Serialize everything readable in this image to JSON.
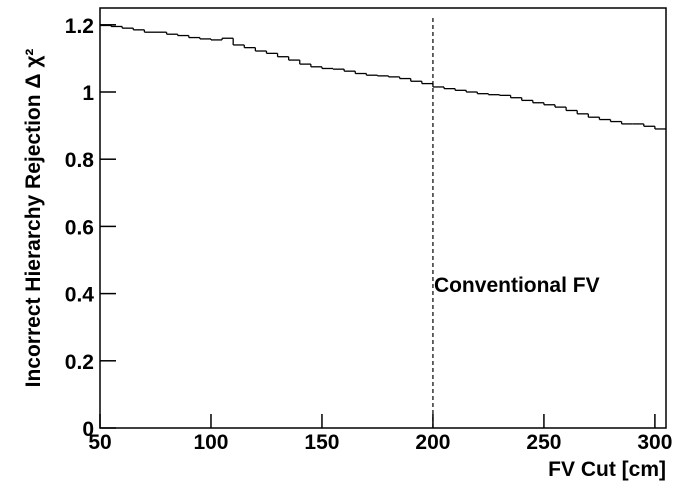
{
  "chart_data": {
    "type": "histogram",
    "x_label": "FV Cut [cm]",
    "y_label": "Incorrect Hierarchy Rejection Δ χ²",
    "bins": [
      50,
      55,
      60,
      65,
      70,
      75,
      80,
      85,
      90,
      95,
      100,
      105,
      110,
      115,
      120,
      125,
      130,
      135,
      140,
      145,
      150,
      155,
      160,
      165,
      170,
      175,
      180,
      185,
      190,
      195,
      200,
      205,
      210,
      215,
      220,
      225,
      230,
      235,
      240,
      245,
      250,
      255,
      260,
      265,
      270,
      275,
      280,
      285,
      290,
      295,
      300,
      305
    ],
    "values": [
      1.198,
      1.195,
      1.19,
      1.185,
      1.178,
      1.178,
      1.172,
      1.168,
      1.162,
      1.158,
      1.155,
      1.16,
      1.14,
      1.132,
      1.122,
      1.115,
      1.105,
      1.095,
      1.083,
      1.075,
      1.07,
      1.068,
      1.062,
      1.055,
      1.05,
      1.048,
      1.045,
      1.04,
      1.032,
      1.025,
      1.015,
      1.01,
      1.005,
      1.0,
      0.995,
      0.992,
      0.99,
      0.983,
      0.975,
      0.968,
      0.962,
      0.955,
      0.945,
      0.935,
      0.925,
      0.918,
      0.912,
      0.905,
      0.905,
      0.898,
      0.89
    ],
    "color": "#000000",
    "xlim": [
      50,
      305
    ],
    "xticks": [
      50,
      100,
      150,
      200,
      250,
      300
    ],
    "ylim": [
      0,
      1.25
    ],
    "yticks": [
      0,
      0.2,
      0.4,
      0.6,
      0.8,
      1,
      1.2
    ],
    "reference_line": {
      "x": 200,
      "label": "Conventional FV"
    }
  }
}
